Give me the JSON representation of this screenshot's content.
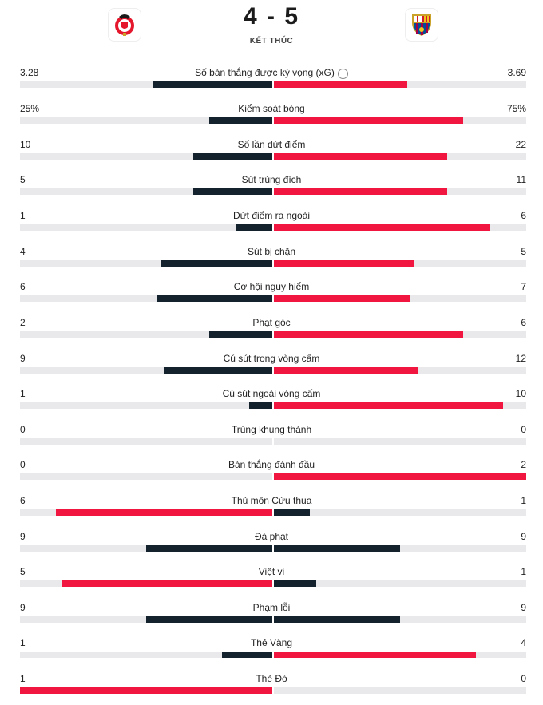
{
  "match": {
    "score": "4 - 5",
    "status": "KẾT THÚC",
    "home_crest_icon": "benfica-crest-icon",
    "away_crest_icon": "barcelona-crest-icon"
  },
  "colors": {
    "dark": "#13222c",
    "red": "#f0163f",
    "track": "#e9e9ec"
  },
  "stats": [
    {
      "label": "Số bàn thắng được kỳ vọng (xG)",
      "home": "3.28",
      "away": "3.69",
      "home_share": 0.47,
      "away_share": 0.53,
      "home_color": "dark",
      "away_color": "red",
      "info": true
    },
    {
      "label": "Kiểm soát bóng",
      "home": "25%",
      "away": "75%",
      "home_share": 0.25,
      "away_share": 0.75,
      "home_color": "dark",
      "away_color": "red"
    },
    {
      "label": "Số lần dứt điểm",
      "home": "10",
      "away": "22",
      "home_share": 0.3125,
      "away_share": 0.6875,
      "home_color": "dark",
      "away_color": "red"
    },
    {
      "label": "Sút trúng đích",
      "home": "5",
      "away": "11",
      "home_share": 0.3125,
      "away_share": 0.6875,
      "home_color": "dark",
      "away_color": "red"
    },
    {
      "label": "Dứt điểm ra ngoài",
      "home": "1",
      "away": "6",
      "home_share": 0.143,
      "away_share": 0.857,
      "home_color": "dark",
      "away_color": "red"
    },
    {
      "label": "Sút bị chặn",
      "home": "4",
      "away": "5",
      "home_share": 0.444,
      "away_share": 0.556,
      "home_color": "dark",
      "away_color": "red"
    },
    {
      "label": "Cơ hội nguy hiểm",
      "home": "6",
      "away": "7",
      "home_share": 0.46,
      "away_share": 0.54,
      "home_color": "dark",
      "away_color": "red"
    },
    {
      "label": "Phạt góc",
      "home": "2",
      "away": "6",
      "home_share": 0.25,
      "away_share": 0.75,
      "home_color": "dark",
      "away_color": "red"
    },
    {
      "label": "Cú sút trong vòng cấm",
      "home": "9",
      "away": "12",
      "home_share": 0.4286,
      "away_share": 0.5714,
      "home_color": "dark",
      "away_color": "red"
    },
    {
      "label": "Cú sút ngoài vòng cấm",
      "home": "1",
      "away": "10",
      "home_share": 0.091,
      "away_share": 0.909,
      "home_color": "dark",
      "away_color": "red"
    },
    {
      "label": "Trúng khung thành",
      "home": "0",
      "away": "0",
      "home_share": 0,
      "away_share": 0,
      "home_color": "dark",
      "away_color": "red"
    },
    {
      "label": "Bàn thắng đánh đầu",
      "home": "0",
      "away": "2",
      "home_share": 0,
      "away_share": 1,
      "home_color": "dark",
      "away_color": "red"
    },
    {
      "label": "Thủ môn Cứu thua",
      "home": "6",
      "away": "1",
      "home_share": 0.857,
      "away_share": 0.143,
      "home_color": "red",
      "away_color": "dark"
    },
    {
      "label": "Đá phạt",
      "home": "9",
      "away": "9",
      "home_share": 0.5,
      "away_share": 0.5,
      "home_color": "dark",
      "away_color": "dark"
    },
    {
      "label": "Việt vị",
      "home": "5",
      "away": "1",
      "home_share": 0.833,
      "away_share": 0.167,
      "home_color": "red",
      "away_color": "dark"
    },
    {
      "label": "Phạm lỗi",
      "home": "9",
      "away": "9",
      "home_share": 0.5,
      "away_share": 0.5,
      "home_color": "dark",
      "away_color": "dark"
    },
    {
      "label": "Thẻ Vàng",
      "home": "1",
      "away": "4",
      "home_share": 0.2,
      "away_share": 0.8,
      "home_color": "dark",
      "away_color": "red"
    },
    {
      "label": "Thẻ Đỏ",
      "home": "1",
      "away": "0",
      "home_share": 1,
      "away_share": 0,
      "home_color": "red",
      "away_color": "dark"
    }
  ]
}
